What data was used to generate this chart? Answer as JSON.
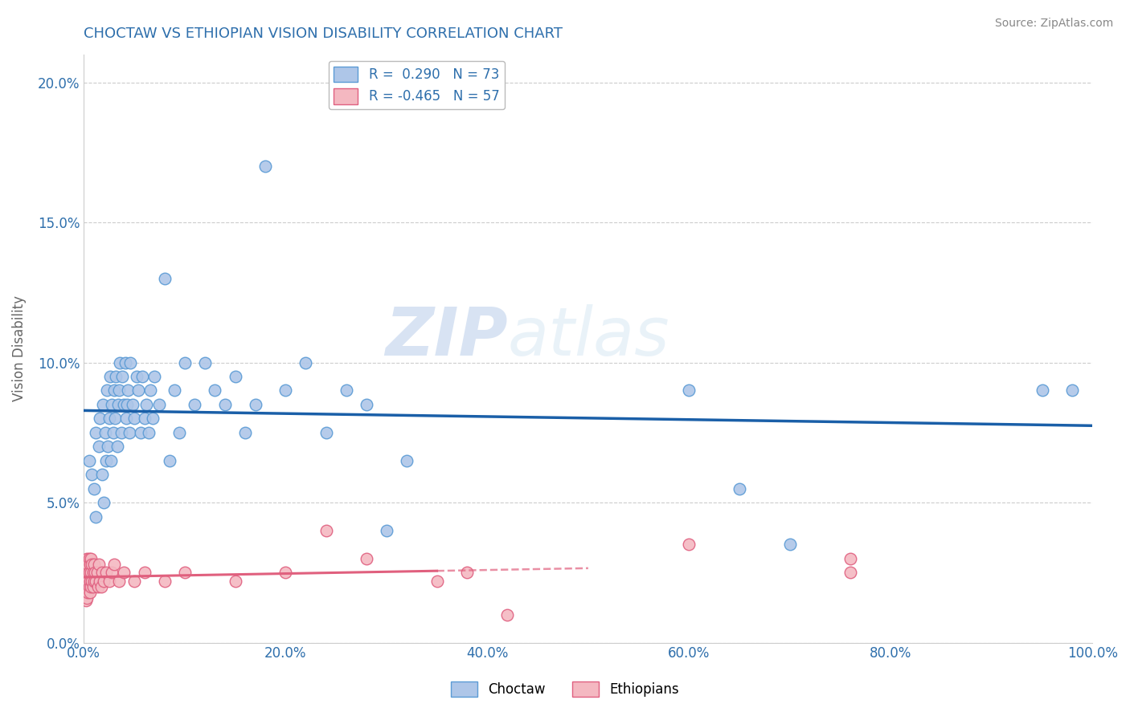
{
  "title": "CHOCTAW VS ETHIOPIAN VISION DISABILITY CORRELATION CHART",
  "source": "Source: ZipAtlas.com",
  "ylabel": "Vision Disability",
  "xlabel": "",
  "xlim": [
    0.0,
    1.0
  ],
  "ylim": [
    0.0,
    0.21
  ],
  "xticks": [
    0.0,
    0.2,
    0.4,
    0.6,
    0.8,
    1.0
  ],
  "xticklabels": [
    "0.0%",
    "20.0%",
    "40.0%",
    "60.0%",
    "80.0%",
    "100.0%"
  ],
  "yticks": [
    0.0,
    0.05,
    0.1,
    0.15,
    0.2
  ],
  "yticklabels": [
    "0.0%",
    "5.0%",
    "10.0%",
    "15.0%",
    "20.0%"
  ],
  "choctaw_color": "#aec6e8",
  "choctaw_edge": "#5b9bd5",
  "ethiopian_color": "#f4b8c1",
  "ethiopian_edge": "#e06080",
  "line_blue": "#1a5fa8",
  "line_pink": "#e0607e",
  "legend_R1": "R =  0.290",
  "legend_N1": "N = 73",
  "legend_R2": "R = -0.465",
  "legend_N2": "N = 57",
  "title_color": "#2e6fac",
  "axis_color": "#2e6fac",
  "tick_color": "#2e6fac",
  "watermark_zip": "ZIP",
  "watermark_atlas": "atlas",
  "background": "#ffffff",
  "grid_color": "#cccccc",
  "choctaw_x": [
    0.005,
    0.008,
    0.01,
    0.012,
    0.012,
    0.015,
    0.016,
    0.018,
    0.019,
    0.02,
    0.021,
    0.022,
    0.023,
    0.024,
    0.025,
    0.026,
    0.027,
    0.028,
    0.029,
    0.03,
    0.031,
    0.032,
    0.033,
    0.034,
    0.035,
    0.036,
    0.037,
    0.038,
    0.04,
    0.041,
    0.042,
    0.043,
    0.044,
    0.045,
    0.046,
    0.048,
    0.05,
    0.052,
    0.054,
    0.056,
    0.058,
    0.06,
    0.062,
    0.064,
    0.066,
    0.068,
    0.07,
    0.075,
    0.08,
    0.085,
    0.09,
    0.095,
    0.1,
    0.11,
    0.12,
    0.13,
    0.14,
    0.15,
    0.16,
    0.17,
    0.18,
    0.2,
    0.22,
    0.24,
    0.26,
    0.28,
    0.3,
    0.32,
    0.6,
    0.65,
    0.7,
    0.95,
    0.98
  ],
  "choctaw_y": [
    0.065,
    0.06,
    0.055,
    0.045,
    0.075,
    0.07,
    0.08,
    0.06,
    0.085,
    0.05,
    0.075,
    0.065,
    0.09,
    0.07,
    0.08,
    0.095,
    0.065,
    0.085,
    0.075,
    0.09,
    0.08,
    0.095,
    0.07,
    0.085,
    0.09,
    0.1,
    0.075,
    0.095,
    0.085,
    0.1,
    0.08,
    0.085,
    0.09,
    0.075,
    0.1,
    0.085,
    0.08,
    0.095,
    0.09,
    0.075,
    0.095,
    0.08,
    0.085,
    0.075,
    0.09,
    0.08,
    0.095,
    0.085,
    0.13,
    0.065,
    0.09,
    0.075,
    0.1,
    0.085,
    0.1,
    0.09,
    0.085,
    0.095,
    0.075,
    0.085,
    0.17,
    0.09,
    0.1,
    0.075,
    0.09,
    0.085,
    0.04,
    0.065,
    0.09,
    0.055,
    0.035,
    0.09,
    0.09
  ],
  "ethiopian_x": [
    0.001,
    0.001,
    0.001,
    0.002,
    0.002,
    0.002,
    0.003,
    0.003,
    0.003,
    0.003,
    0.004,
    0.004,
    0.004,
    0.005,
    0.005,
    0.005,
    0.006,
    0.006,
    0.006,
    0.007,
    0.007,
    0.007,
    0.008,
    0.008,
    0.009,
    0.009,
    0.01,
    0.01,
    0.011,
    0.012,
    0.013,
    0.014,
    0.015,
    0.016,
    0.017,
    0.018,
    0.02,
    0.022,
    0.025,
    0.028,
    0.03,
    0.035,
    0.04,
    0.05,
    0.06,
    0.08,
    0.1,
    0.15,
    0.2,
    0.24,
    0.28,
    0.35,
    0.38,
    0.42,
    0.6,
    0.76,
    0.76
  ],
  "ethiopian_y": [
    0.025,
    0.022,
    0.018,
    0.028,
    0.02,
    0.015,
    0.03,
    0.025,
    0.02,
    0.016,
    0.028,
    0.022,
    0.018,
    0.03,
    0.025,
    0.02,
    0.028,
    0.022,
    0.018,
    0.03,
    0.025,
    0.02,
    0.028,
    0.022,
    0.025,
    0.02,
    0.028,
    0.022,
    0.025,
    0.022,
    0.025,
    0.02,
    0.028,
    0.022,
    0.02,
    0.025,
    0.022,
    0.025,
    0.022,
    0.025,
    0.028,
    0.022,
    0.025,
    0.022,
    0.025,
    0.022,
    0.025,
    0.022,
    0.025,
    0.04,
    0.03,
    0.022,
    0.025,
    0.01,
    0.035,
    0.03,
    0.025
  ]
}
